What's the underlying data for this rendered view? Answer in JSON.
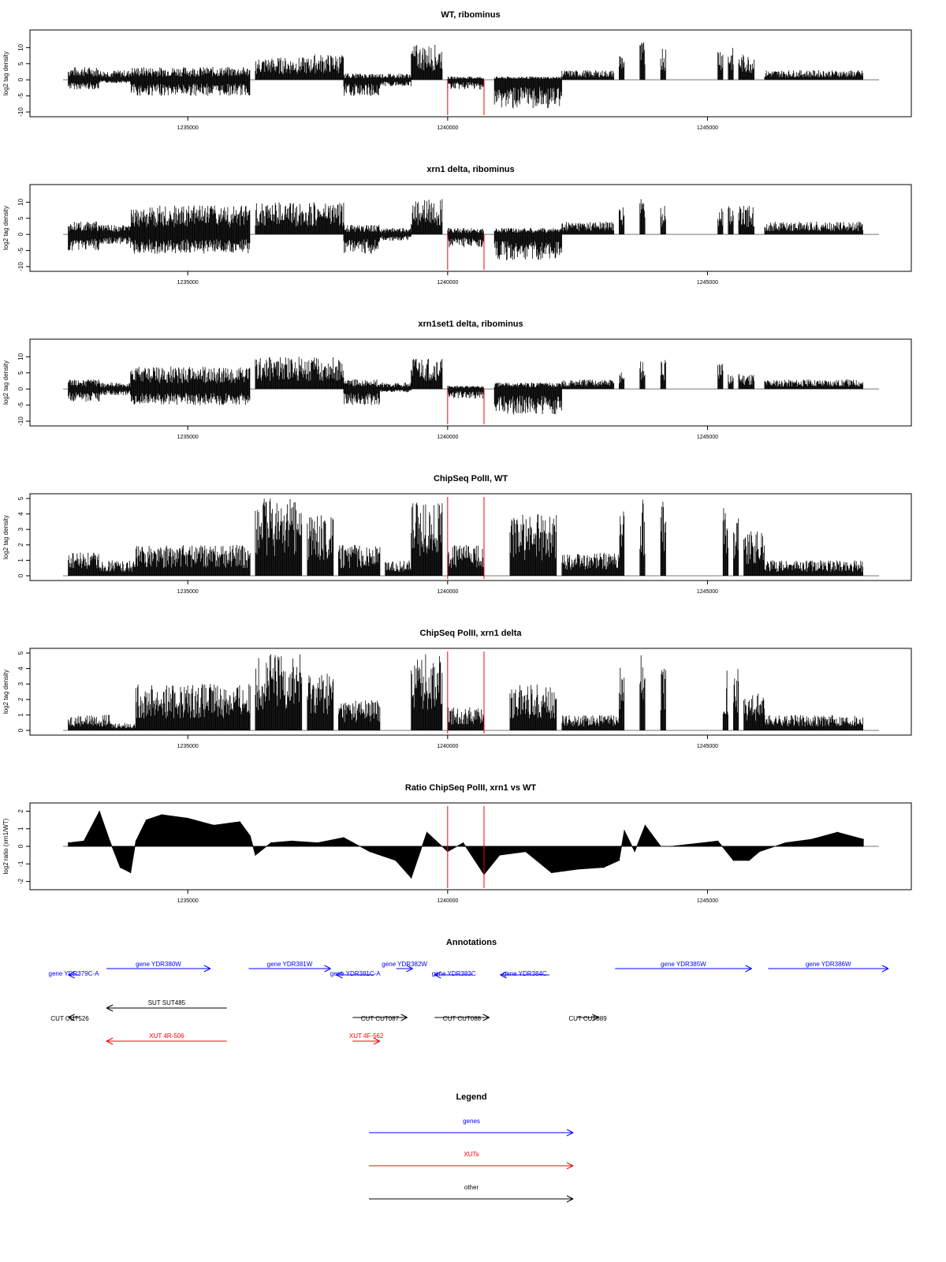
{
  "colors": {
    "black": "#000000",
    "red": "#ff0000",
    "blue": "#0000ff",
    "axis": "#000000"
  },
  "chart_data": [
    {
      "type": "bar",
      "title": "WT, ribominus",
      "ylabel": "log2 tag density",
      "xlim": [
        1232600,
        1248300
      ],
      "ylim": [
        -10,
        14
      ],
      "yticks": [
        -10,
        -5,
        0,
        5,
        10
      ],
      "ytick_labels": [
        "-10",
        "-5",
        "0",
        "5",
        "10"
      ],
      "xticks": [
        1235000,
        1240000,
        1245000
      ],
      "xtick_labels": [
        "1235000",
        "1240000",
        "1245000"
      ],
      "red_lines": [
        1240000,
        1240700
      ],
      "segments": [
        {
          "x": [
            1232700,
            1233300
          ],
          "max": 4,
          "min": -3
        },
        {
          "x": [
            1233300,
            1233900
          ],
          "max": 3,
          "min": -1
        },
        {
          "x": [
            1233900,
            1236200
          ],
          "max": 4,
          "min": -5
        },
        {
          "x": [
            1236300,
            1237400
          ],
          "max": 7,
          "min": 0
        },
        {
          "x": [
            1237400,
            1238000
          ],
          "max": 8,
          "min": 0
        },
        {
          "x": [
            1238000,
            1238700
          ],
          "max": 2,
          "min": -5
        },
        {
          "x": [
            1238700,
            1239300
          ],
          "max": 2,
          "min": -2
        },
        {
          "x": [
            1239300,
            1239900
          ],
          "max": 11,
          "min": 0
        },
        {
          "x": [
            1240000,
            1240700
          ],
          "max": 1,
          "min": -3
        },
        {
          "x": [
            1240900,
            1242200
          ],
          "max": 1,
          "min": -9
        },
        {
          "x": [
            1242200,
            1243200
          ],
          "max": 3,
          "min": 0
        },
        {
          "x": [
            1243300,
            1243400
          ],
          "max": 9,
          "min": 0
        },
        {
          "x": [
            1243700,
            1243800
          ],
          "max": 12,
          "min": 0
        },
        {
          "x": [
            1244100,
            1244200
          ],
          "max": 11,
          "min": 0
        },
        {
          "x": [
            1245200,
            1245300
          ],
          "max": 11,
          "min": 0
        },
        {
          "x": [
            1245400,
            1245500
          ],
          "max": 10,
          "min": 0
        },
        {
          "x": [
            1245600,
            1245900
          ],
          "max": 8,
          "min": 0
        },
        {
          "x": [
            1246100,
            1248000
          ],
          "max": 3,
          "min": 0
        }
      ]
    },
    {
      "type": "bar",
      "title": "xrn1 delta, ribominus",
      "ylabel": "log2 tag density",
      "xlim": [
        1232600,
        1248300
      ],
      "ylim": [
        -10,
        14
      ],
      "yticks": [
        -10,
        -5,
        0,
        5,
        10
      ],
      "ytick_labels": [
        "-10",
        "-5",
        "0",
        "5",
        "10"
      ],
      "xticks": [
        1235000,
        1240000,
        1245000
      ],
      "xtick_labels": [
        "1235000",
        "1240000",
        "1245000"
      ],
      "red_lines": [
        1240000,
        1240700
      ],
      "segments": [
        {
          "x": [
            1232700,
            1233300
          ],
          "max": 4,
          "min": -5
        },
        {
          "x": [
            1233300,
            1233900
          ],
          "max": 3,
          "min": -3
        },
        {
          "x": [
            1233900,
            1236200
          ],
          "max": 9,
          "min": -6
        },
        {
          "x": [
            1236300,
            1238000
          ],
          "max": 10,
          "min": 0
        },
        {
          "x": [
            1238000,
            1238700
          ],
          "max": 3,
          "min": -6
        },
        {
          "x": [
            1238700,
            1239300
          ],
          "max": 2,
          "min": -2
        },
        {
          "x": [
            1239300,
            1239900
          ],
          "max": 11,
          "min": 0
        },
        {
          "x": [
            1240000,
            1240700
          ],
          "max": 2,
          "min": -4
        },
        {
          "x": [
            1240900,
            1242200
          ],
          "max": 2,
          "min": -8
        },
        {
          "x": [
            1242200,
            1243200
          ],
          "max": 4,
          "min": 0
        },
        {
          "x": [
            1243300,
            1243400
          ],
          "max": 10,
          "min": 0
        },
        {
          "x": [
            1243700,
            1243800
          ],
          "max": 12,
          "min": 0
        },
        {
          "x": [
            1244100,
            1244200
          ],
          "max": 9,
          "min": 0
        },
        {
          "x": [
            1245200,
            1245300
          ],
          "max": 10,
          "min": 0
        },
        {
          "x": [
            1245400,
            1245500
          ],
          "max": 10,
          "min": 0
        },
        {
          "x": [
            1245600,
            1245900
          ],
          "max": 9,
          "min": 0
        },
        {
          "x": [
            1246100,
            1248000
          ],
          "max": 4,
          "min": 0
        }
      ]
    },
    {
      "type": "bar",
      "title": "xrn1set1 delta, ribominus",
      "ylabel": "log2 tag density",
      "xlim": [
        1232600,
        1248300
      ],
      "ylim": [
        -10,
        14
      ],
      "yticks": [
        -10,
        -5,
        0,
        5,
        10
      ],
      "ytick_labels": [
        "-10",
        "-5",
        "0",
        "5",
        "10"
      ],
      "xticks": [
        1235000,
        1240000,
        1245000
      ],
      "xtick_labels": [
        "1235000",
        "1240000",
        "1245000"
      ],
      "red_lines": [
        1240000,
        1240700
      ],
      "segments": [
        {
          "x": [
            1232700,
            1233300
          ],
          "max": 3,
          "min": -4
        },
        {
          "x": [
            1233300,
            1233900
          ],
          "max": 2,
          "min": -2
        },
        {
          "x": [
            1233900,
            1236200
          ],
          "max": 7,
          "min": -5
        },
        {
          "x": [
            1236300,
            1238000
          ],
          "max": 10,
          "min": 0
        },
        {
          "x": [
            1238000,
            1238700
          ],
          "max": 3,
          "min": -5
        },
        {
          "x": [
            1238700,
            1239300
          ],
          "max": 2,
          "min": -1
        },
        {
          "x": [
            1239300,
            1239900
          ],
          "max": 10,
          "min": 0
        },
        {
          "x": [
            1240000,
            1240700
          ],
          "max": 1,
          "min": -3
        },
        {
          "x": [
            1240900,
            1242200
          ],
          "max": 2,
          "min": -8
        },
        {
          "x": [
            1242200,
            1243200
          ],
          "max": 3,
          "min": 0
        },
        {
          "x": [
            1243300,
            1243400
          ],
          "max": 6,
          "min": 0
        },
        {
          "x": [
            1243700,
            1243800
          ],
          "max": 9,
          "min": 0
        },
        {
          "x": [
            1244100,
            1244200
          ],
          "max": 9,
          "min": 0
        },
        {
          "x": [
            1245200,
            1245300
          ],
          "max": 8,
          "min": 0
        },
        {
          "x": [
            1245400,
            1245500
          ],
          "max": 5,
          "min": 0
        },
        {
          "x": [
            1245600,
            1245900
          ],
          "max": 5,
          "min": 0
        },
        {
          "x": [
            1246100,
            1248000
          ],
          "max": 3,
          "min": 0
        }
      ]
    },
    {
      "type": "bar",
      "title": "ChipSeq PolII, WT",
      "ylabel": "log2 tag density",
      "xlim": [
        1232600,
        1248300
      ],
      "ylim": [
        0,
        5
      ],
      "yticks": [
        0,
        1,
        2,
        3,
        4,
        5
      ],
      "ytick_labels": [
        "0",
        "1",
        "2",
        "3",
        "4",
        "5"
      ],
      "xticks": [
        1235000,
        1240000,
        1245000
      ],
      "xtick_labels": [
        "1235000",
        "1240000",
        "1245000"
      ],
      "red_lines": [
        1240000,
        1240700
      ],
      "segments": [
        {
          "x": [
            1232700,
            1233300
          ],
          "max": 1.5,
          "min": 0
        },
        {
          "x": [
            1233300,
            1234000
          ],
          "max": 1,
          "min": 0
        },
        {
          "x": [
            1234000,
            1236200
          ],
          "max": 2,
          "min": 0
        },
        {
          "x": [
            1236300,
            1237200
          ],
          "max": 5,
          "min": 0
        },
        {
          "x": [
            1237300,
            1237800
          ],
          "max": 4,
          "min": 0
        },
        {
          "x": [
            1237900,
            1238700
          ],
          "max": 2,
          "min": 0
        },
        {
          "x": [
            1238800,
            1239300
          ],
          "max": 1,
          "min": 0
        },
        {
          "x": [
            1239300,
            1239900
          ],
          "max": 4.8,
          "min": 0
        },
        {
          "x": [
            1240000,
            1240700
          ],
          "max": 2,
          "min": 0
        },
        {
          "x": [
            1241200,
            1242100
          ],
          "max": 4,
          "min": 0
        },
        {
          "x": [
            1242200,
            1243300
          ],
          "max": 1.5,
          "min": 0
        },
        {
          "x": [
            1243300,
            1243400
          ],
          "max": 4.5,
          "min": 0
        },
        {
          "x": [
            1243700,
            1243800
          ],
          "max": 5,
          "min": 0
        },
        {
          "x": [
            1244100,
            1244200
          ],
          "max": 4.8,
          "min": 0
        },
        {
          "x": [
            1245300,
            1245400
          ],
          "max": 4.5,
          "min": 0
        },
        {
          "x": [
            1245500,
            1245600
          ],
          "max": 4.5,
          "min": 0
        },
        {
          "x": [
            1245700,
            1246100
          ],
          "max": 3,
          "min": 0
        },
        {
          "x": [
            1246100,
            1248000
          ],
          "max": 1,
          "min": 0
        }
      ]
    },
    {
      "type": "bar",
      "title": "ChipSeq PolII, xrn1 delta",
      "ylabel": "log2 tag density",
      "xlim": [
        1232600,
        1248300
      ],
      "ylim": [
        0,
        5
      ],
      "yticks": [
        0,
        1,
        2,
        3,
        4,
        5
      ],
      "ytick_labels": [
        "0",
        "1",
        "2",
        "3",
        "4",
        "5"
      ],
      "xticks": [
        1235000,
        1240000,
        1245000
      ],
      "xtick_labels": [
        "1235000",
        "1240000",
        "1245000"
      ],
      "red_lines": [
        1240000,
        1240700
      ],
      "segments": [
        {
          "x": [
            1232700,
            1233500
          ],
          "max": 1,
          "min": 0
        },
        {
          "x": [
            1233500,
            1234000
          ],
          "max": 0.5,
          "min": 0
        },
        {
          "x": [
            1234000,
            1236200
          ],
          "max": 3,
          "min": 0
        },
        {
          "x": [
            1236300,
            1237200
          ],
          "max": 5,
          "min": 0
        },
        {
          "x": [
            1237300,
            1237800
          ],
          "max": 3.8,
          "min": 0
        },
        {
          "x": [
            1237900,
            1238700
          ],
          "max": 2,
          "min": 0
        },
        {
          "x": [
            1239300,
            1239900
          ],
          "max": 5,
          "min": 0
        },
        {
          "x": [
            1240000,
            1240700
          ],
          "max": 1.5,
          "min": 0
        },
        {
          "x": [
            1241200,
            1242100
          ],
          "max": 3,
          "min": 0
        },
        {
          "x": [
            1242200,
            1243300
          ],
          "max": 1,
          "min": 0
        },
        {
          "x": [
            1243300,
            1243400
          ],
          "max": 4.2,
          "min": 0
        },
        {
          "x": [
            1243700,
            1243800
          ],
          "max": 5,
          "min": 0
        },
        {
          "x": [
            1244100,
            1244200
          ],
          "max": 4.5,
          "min": 0
        },
        {
          "x": [
            1245300,
            1245400
          ],
          "max": 4,
          "min": 0
        },
        {
          "x": [
            1245500,
            1245600
          ],
          "max": 4,
          "min": 0
        },
        {
          "x": [
            1245700,
            1246100
          ],
          "max": 2.5,
          "min": 0
        },
        {
          "x": [
            1246100,
            1248000
          ],
          "max": 1,
          "min": 0
        }
      ]
    },
    {
      "type": "area",
      "title": "Ratio ChipSeq PolII, xrn1 vs WT",
      "ylabel": "log2 ratio (xrn1/WT)",
      "xlim": [
        1232600,
        1248300
      ],
      "ylim": [
        -2.2,
        2.2
      ],
      "yticks": [
        -2,
        -1,
        0,
        1,
        2
      ],
      "ytick_labels": [
        "-2",
        "-1",
        "0",
        "1",
        "2"
      ],
      "xticks": [
        1235000,
        1240000,
        1245000
      ],
      "xtick_labels": [
        "1235000",
        "1240000",
        "1245000"
      ],
      "red_lines": [
        1240000,
        1240700
      ],
      "x": [
        1232700,
        1233000,
        1233300,
        1233500,
        1233700,
        1233900,
        1234000,
        1234200,
        1234500,
        1235000,
        1235500,
        1236000,
        1236200,
        1236300,
        1236600,
        1237000,
        1237500,
        1238000,
        1238500,
        1239000,
        1239300,
        1239600,
        1240000,
        1240300,
        1240700,
        1241000,
        1241500,
        1242000,
        1242500,
        1243000,
        1243300,
        1243400,
        1243600,
        1243800,
        1244100,
        1244300,
        1245200,
        1245500,
        1245800,
        1246000,
        1246500,
        1247000,
        1247500,
        1248000
      ],
      "y": [
        0.2,
        0.3,
        2.0,
        0.3,
        -1.2,
        -1.5,
        0.3,
        1.5,
        1.8,
        1.6,
        1.2,
        1.4,
        0.6,
        -0.5,
        0.2,
        0.3,
        0.2,
        0.5,
        -0.3,
        -0.8,
        -1.8,
        0.8,
        -0.3,
        0.2,
        -1.6,
        -0.5,
        -0.3,
        -1.5,
        -1.3,
        -1.2,
        -0.8,
        0.9,
        -0.3,
        1.2,
        0.0,
        0.0,
        0.3,
        -0.8,
        -0.8,
        -0.3,
        0.2,
        0.4,
        0.8,
        0.4
      ]
    }
  ],
  "annotations": {
    "title": "Annotations",
    "items": [
      {
        "label": "gene YDR379C-A",
        "color": "blue",
        "dir": "left",
        "x1": 1233300,
        "x2": 1233500,
        "row": 1
      },
      {
        "label": "gene YDR380W",
        "color": "blue",
        "dir": "right",
        "x1": 1234000,
        "x2": 1235900,
        "row": 0
      },
      {
        "label": "gene YDR381W",
        "color": "blue",
        "dir": "right",
        "x1": 1236600,
        "x2": 1238100,
        "row": 0
      },
      {
        "label": "gene YDR381C-A",
        "color": "blue",
        "dir": "left",
        "x1": 1238200,
        "x2": 1238900,
        "row": 1
      },
      {
        "label": "gene YDR382W",
        "color": "blue",
        "dir": "right",
        "x1": 1239300,
        "x2": 1239600,
        "row": 0
      },
      {
        "label": "gene YDR383C",
        "color": "blue",
        "dir": "left",
        "x1": 1240000,
        "x2": 1240700,
        "row": 1
      },
      {
        "label": "gene YDR384C",
        "color": "blue",
        "dir": "left",
        "x1": 1241200,
        "x2": 1242100,
        "row": 1
      },
      {
        "label": "gene YDR385W",
        "color": "blue",
        "dir": "right",
        "x1": 1243300,
        "x2": 1245800,
        "row": 0
      },
      {
        "label": "gene YDR386W",
        "color": "blue",
        "dir": "right",
        "x1": 1246100,
        "x2": 1248300,
        "row": 0
      },
      {
        "label": "SUT SUT485",
        "color": "black",
        "dir": "left",
        "x1": 1234000,
        "x2": 1236200,
        "row": 2
      },
      {
        "label": "CUT CUT526",
        "color": "black",
        "dir": "left",
        "x1": 1233300,
        "x2": 1233500,
        "row": 3
      },
      {
        "label": "CUT CUT087",
        "color": "black",
        "dir": "right",
        "x1": 1238500,
        "x2": 1239500,
        "row": 3
      },
      {
        "label": "CUT CUT088",
        "color": "black",
        "dir": "right",
        "x1": 1240000,
        "x2": 1241000,
        "row": 3
      },
      {
        "label": "CUT CUT089",
        "color": "black",
        "dir": "right",
        "x1": 1242600,
        "x2": 1243000,
        "row": 3
      },
      {
        "label": "XUT 4R-506",
        "color": "red",
        "dir": "left",
        "x1": 1234000,
        "x2": 1236200,
        "row": 4
      },
      {
        "label": "XUT 4F-562",
        "color": "red",
        "dir": "right",
        "x1": 1238500,
        "x2": 1239000,
        "row": 4
      }
    ]
  },
  "legend": {
    "title": "Legend",
    "items": [
      {
        "label": "genes",
        "color": "blue"
      },
      {
        "label": "XUTs",
        "color": "red"
      },
      {
        "label": "other",
        "color": "black"
      }
    ]
  }
}
